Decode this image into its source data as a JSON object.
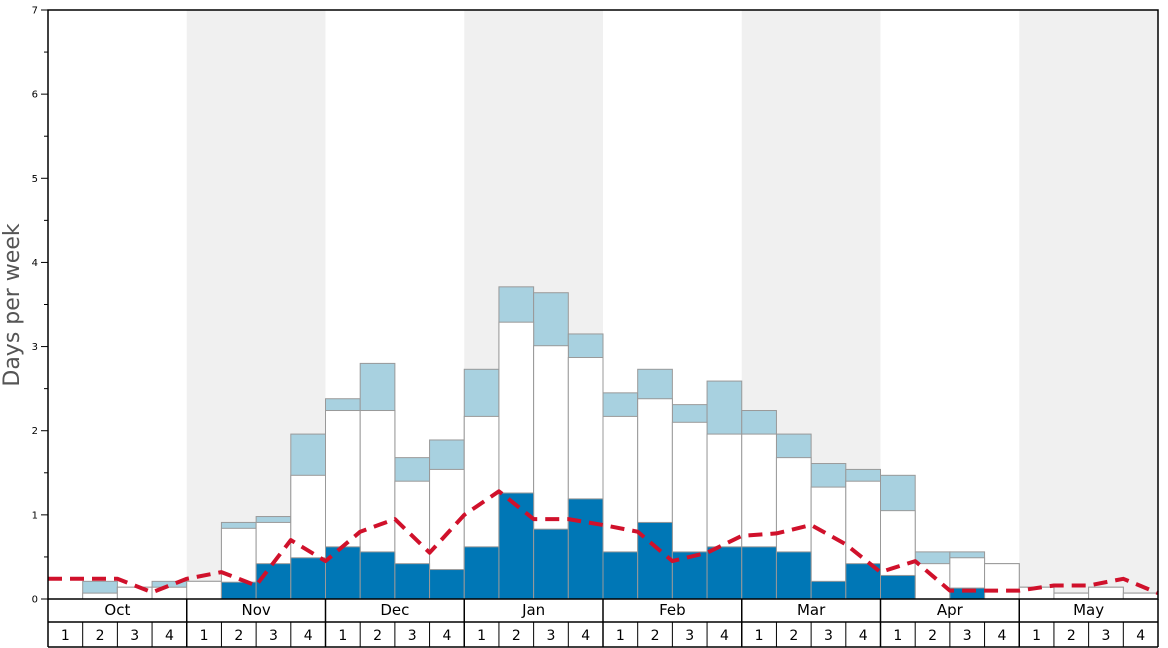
{
  "chart_data": {
    "type": "bar",
    "title": "",
    "ylabel": "Days per week",
    "ylim": [
      0,
      7
    ],
    "yticks": [
      0,
      1,
      2,
      3,
      4,
      5,
      6,
      7
    ],
    "months": [
      "Oct",
      "Nov",
      "Dec",
      "Jan",
      "Feb",
      "Mar",
      "Apr",
      "May"
    ],
    "weeks": [
      "1",
      "2",
      "3",
      "4"
    ],
    "shaded_months": [
      "Nov",
      "Jan",
      "Mar",
      "May"
    ],
    "colors": {
      "dark": "#0077b6",
      "white": "#ffffff",
      "light": "#a8d1e0",
      "line": "#d0112b",
      "band": "#f0f0f0",
      "bar_stroke": "#999999"
    },
    "series": [
      {
        "key": "dark",
        "values": [
          0,
          0,
          0,
          0,
          0,
          0.2,
          0.42,
          0.49,
          0.62,
          0.56,
          0.42,
          0.35,
          0.62,
          1.26,
          0.83,
          1.19,
          0.56,
          0.91,
          0.56,
          0.62,
          0.62,
          0.56,
          0.21,
          0.42,
          0.28,
          0,
          0.13,
          0,
          0,
          0,
          0,
          0
        ]
      },
      {
        "key": "white",
        "values": [
          0,
          0.07,
          0.14,
          0.14,
          0.21,
          0.84,
          0.91,
          1.47,
          2.24,
          2.24,
          1.4,
          1.54,
          2.17,
          3.29,
          3.01,
          2.87,
          2.17,
          2.38,
          2.1,
          1.96,
          1.96,
          1.68,
          1.33,
          1.4,
          1.05,
          0.42,
          0.49,
          0.42,
          0.14,
          0.07,
          0.14,
          0.07
        ]
      },
      {
        "key": "light",
        "values": [
          0,
          0.21,
          0.14,
          0.21,
          0.21,
          0.91,
          0.98,
          1.96,
          2.38,
          2.8,
          1.68,
          1.89,
          2.73,
          3.71,
          3.64,
          3.15,
          2.45,
          2.73,
          2.31,
          2.59,
          2.24,
          1.96,
          1.61,
          1.54,
          1.47,
          0.56,
          0.56,
          0.42,
          0.14,
          0.07,
          0.14,
          0.07
        ]
      }
    ],
    "trend_line": [
      0.24,
      0.24,
      0.24,
      0.08,
      0.24,
      0.32,
      0.16,
      0.7,
      0.45,
      0.8,
      0.95,
      0.55,
      1.0,
      1.28,
      0.95,
      0.95,
      0.88,
      0.8,
      0.45,
      0.55,
      0.75,
      0.78,
      0.88,
      0.65,
      0.32,
      0.45,
      0.1,
      0.1,
      0.1,
      0.16,
      0.16,
      0.24,
      0.07
    ]
  }
}
